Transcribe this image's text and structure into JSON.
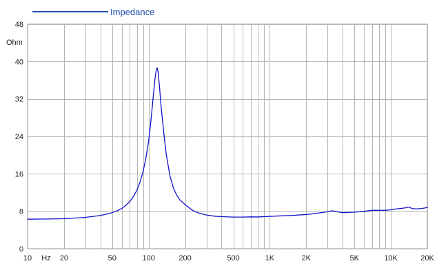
{
  "chart_data": {
    "type": "line",
    "title": "",
    "xlabel": "",
    "ylabel": "Ohm",
    "x_unit_label": "Hz",
    "x_scale": "log",
    "xlim": [
      10,
      20000
    ],
    "ylim": [
      0,
      48
    ],
    "grid": true,
    "legend_position": "top-left",
    "x_ticks": [
      {
        "value": 10,
        "label": "10"
      },
      {
        "value": 20,
        "label": "20"
      },
      {
        "value": 50,
        "label": "50"
      },
      {
        "value": 100,
        "label": "100"
      },
      {
        "value": 200,
        "label": "200"
      },
      {
        "value": 500,
        "label": "500"
      },
      {
        "value": 1000,
        "label": "1K"
      },
      {
        "value": 2000,
        "label": "2K"
      },
      {
        "value": 5000,
        "label": "5K"
      },
      {
        "value": 10000,
        "label": "10K"
      },
      {
        "value": 20000,
        "label": "20K"
      }
    ],
    "x_minor_gridlines": [
      30,
      40,
      60,
      70,
      80,
      90,
      300,
      400,
      600,
      700,
      800,
      900,
      3000,
      4000,
      6000,
      7000,
      8000,
      9000
    ],
    "y_ticks": [
      {
        "value": 0,
        "label": "0"
      },
      {
        "value": 8,
        "label": "8"
      },
      {
        "value": 16,
        "label": "16"
      },
      {
        "value": 24,
        "label": "24"
      },
      {
        "value": 32,
        "label": "32"
      },
      {
        "value": 40,
        "label": "40"
      },
      {
        "value": 48,
        "label": "48"
      }
    ],
    "series": [
      {
        "name": "Impedance",
        "color": "#1010cc",
        "x": [
          10,
          15,
          20,
          25,
          30,
          35,
          40,
          45,
          50,
          55,
          60,
          65,
          70,
          75,
          80,
          85,
          90,
          95,
          100,
          105,
          110,
          113,
          116,
          118,
          120,
          123,
          126,
          130,
          135,
          140,
          150,
          160,
          170,
          180,
          200,
          230,
          260,
          300,
          350,
          400,
          500,
          600,
          700,
          800,
          1000,
          1200,
          1500,
          2000,
          2500,
          3000,
          3300,
          3600,
          4000,
          5000,
          6000,
          7000,
          8000,
          9000,
          10000,
          11000,
          12000,
          13000,
          14000,
          15000,
          16000,
          18000,
          20000
        ],
        "values": [
          6.3,
          6.35,
          6.4,
          6.55,
          6.7,
          6.9,
          7.1,
          7.4,
          7.7,
          8.1,
          8.6,
          9.3,
          10.1,
          11.2,
          12.5,
          14.3,
          16.5,
          19.5,
          23.0,
          28.0,
          33.5,
          36.5,
          38.5,
          38.6,
          37.5,
          34.5,
          31.0,
          27.5,
          23.5,
          20.0,
          15.5,
          13.0,
          11.5,
          10.5,
          9.4,
          8.2,
          7.6,
          7.2,
          6.95,
          6.85,
          6.75,
          6.75,
          6.8,
          6.78,
          6.9,
          7.0,
          7.1,
          7.3,
          7.6,
          7.9,
          8.1,
          7.9,
          7.7,
          7.8,
          8.0,
          8.2,
          8.2,
          8.2,
          8.3,
          8.5,
          8.6,
          8.7,
          8.9,
          8.6,
          8.5,
          8.6,
          8.8
        ]
      }
    ]
  }
}
